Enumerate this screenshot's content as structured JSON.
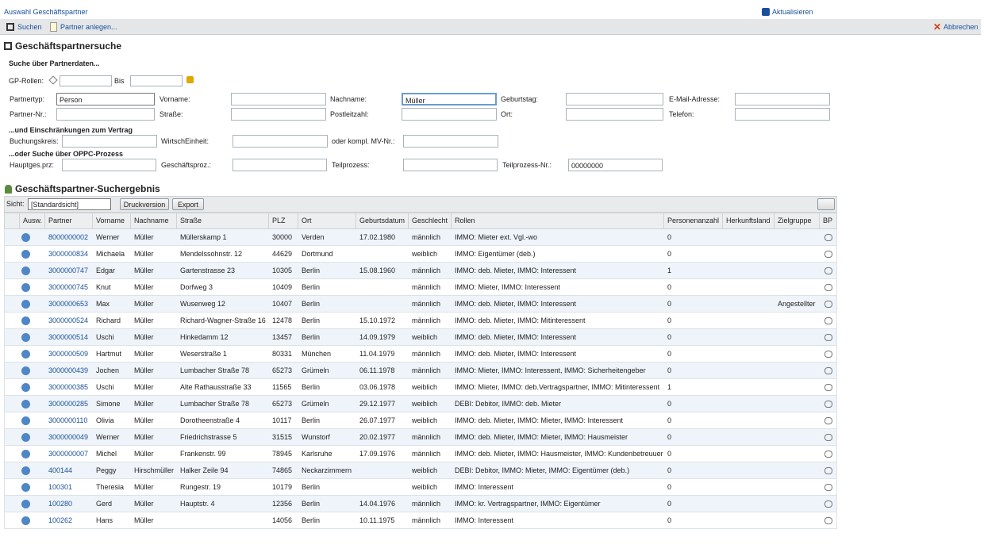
{
  "header": {
    "title": "Auswahl Geschäftspartner",
    "refresh": "Aktualisieren"
  },
  "toolbar": {
    "search": "Suchen",
    "create": "Partner anlegen...",
    "cancel": "Abbrechen"
  },
  "search": {
    "title": "Geschäftspartnersuche",
    "partner_section": "Suche über Partnerdaten...",
    "roles_label": "GP-Rollen:",
    "roles_to": "Bis",
    "fields": [
      [
        {
          "label": "Partnertyp:",
          "value": "Person"
        },
        {
          "label": "Vorname:"
        },
        {
          "label": "Nachname:",
          "value": "Müller"
        },
        {
          "label": "Geburtstag:"
        },
        {
          "label": "E-Mail-Adresse:"
        }
      ],
      [
        {
          "label": "Partner-Nr.:"
        },
        {
          "label": "Straße:"
        },
        {
          "label": "Postleitzahl:"
        },
        {
          "label": "Ort:"
        },
        {
          "label": "Telefon:"
        }
      ]
    ],
    "contract_section": "...und Einschränkungen zum Vertrag",
    "contract_fields": [
      {
        "label": "Buchungskreis:"
      },
      {
        "label": "WirtschEinheit:"
      },
      {
        "label": "oder kompl. MV-Nr.:"
      }
    ],
    "process_section": "...oder Suche über OPPC-Prozess",
    "process_fields": [
      {
        "label": "Hauptges.prz:"
      },
      {
        "label": "Geschäftsproz.:"
      },
      {
        "label": "Teilprozess:"
      },
      {
        "label": "Teilprozess-Nr.:",
        "value": "00000000"
      }
    ]
  },
  "results": {
    "title": "Geschäftspartner-Suchergebnis",
    "view_label": "Sicht:",
    "view": "[Standardsicht]",
    "print": "Druckversion",
    "export": "Export",
    "columns": [
      "Ausw.",
      "Partner",
      "Vorname",
      "Nachname",
      "Straße",
      "PLZ",
      "Ort",
      "Geburtsdatum",
      "Geschlecht",
      "Rollen",
      "Personenanzahl",
      "Herkunftsland",
      "Zielgruppe",
      "BP"
    ],
    "rows": [
      [
        "8000000002",
        "Werner",
        "Müller",
        "Müllerskamp 1",
        "30000",
        "Verden",
        "17.02.1980",
        "männlich",
        "IMMO: Mieter ext. Vgl.-wo",
        0,
        null,
        null
      ],
      [
        "3000000834",
        "Michaela",
        "Müller",
        "Mendelssohnstr. 12",
        "44629",
        "Dortmund",
        null,
        "weiblich",
        "IMMO: Eigentümer (deb.)",
        0,
        null,
        null
      ],
      [
        "3000000747",
        "Edgar",
        "Müller",
        "Gartenstrasse 23",
        "10305",
        "Berlin",
        "15.08.1960",
        "männlich",
        "IMMO: deb. Mieter, IMMO: Interessent",
        1,
        null,
        null
      ],
      [
        "3000000745",
        "Knut",
        "Müller",
        "Dorfweg 3",
        "10409",
        "Berlin",
        null,
        "männlich",
        "IMMO: Mieter, IMMO: Interessent",
        0,
        null,
        null
      ],
      [
        "3000000653",
        "Max",
        "Müller",
        "Wusenweg 12",
        "10407",
        "Berlin",
        null,
        "männlich",
        "IMMO: deb. Mieter, IMMO: Interessent",
        0,
        null,
        "Angestellter"
      ],
      [
        "3000000524",
        "Richard",
        "Müller",
        "Richard-Wagner-Straße 16",
        "12478",
        "Berlin",
        "15.10.1972",
        "männlich",
        "IMMO: deb. Mieter, IMMO: Mitinteressent",
        0,
        null,
        null
      ],
      [
        "3000000514",
        "Uschi",
        "Müller",
        "Hinkedamm 12",
        "13457",
        "Berlin",
        "14.09.1979",
        "weiblich",
        "IMMO: deb. Mieter, IMMO: Interessent",
        0,
        null,
        null
      ],
      [
        "3000000509",
        "Hartmut",
        "Müller",
        "Weserstraße 1",
        "80331",
        "München",
        "11.04.1979",
        "männlich",
        "IMMO: deb. Mieter, IMMO: Interessent",
        0,
        null,
        null
      ],
      [
        "3000000439",
        "Jochen",
        "Müller",
        "Lumbacher Straße 78",
        "65273",
        "Grümeln",
        "06.11.1978",
        "männlich",
        "IMMO: Mieter, IMMO: Interessent, IMMO: Sicherheitengeber",
        0,
        null,
        null
      ],
      [
        "3000000385",
        "Uschi",
        "Müller",
        "Alte Rathausstraße 33",
        "11565",
        "Berlin",
        "03.06.1978",
        "weiblich",
        "IMMO: Mieter, IMMO: deb.Vertragspartner, IMMO: Mitinteressent",
        1,
        null,
        null
      ],
      [
        "3000000285",
        "Simone",
        "Müller",
        "Lumbacher Straße 78",
        "65273",
        "Grümeln",
        "29.12.1977",
        "weiblich",
        "DEBI: Debitor, IMMO: deb. Mieter",
        0,
        null,
        null
      ],
      [
        "3000000110",
        "Olivia",
        "Müller",
        "Dorotheenstraße 4",
        "10117",
        "Berlin",
        "26.07.1977",
        "weiblich",
        "IMMO: deb. Mieter, IMMO: Mieter, IMMO: Interessent",
        0,
        null,
        null
      ],
      [
        "3000000049",
        "Werner",
        "Müller",
        "Friedrichstrasse 5",
        "31515",
        "Wunstorf",
        "20.02.1977",
        "männlich",
        "IMMO: deb. Mieter, IMMO: Mieter, IMMO: Hausmeister",
        0,
        null,
        null
      ],
      [
        "3000000007",
        "Michel",
        "Müller",
        "Frankenstr. 99",
        "78945",
        "Karlsruhe",
        "17.09.1976",
        "männlich",
        "IMMO: deb. Mieter, IMMO: Hausmeister, IMMO: Kundenbetreuuer",
        0,
        null,
        null
      ],
      [
        "400144",
        "Peggy",
        "Hirschmüller",
        "Halker Zeile 94",
        "74865",
        "Neckarzimmern",
        null,
        "weiblich",
        "DEBI: Debitor, IMMO: Mieter, IMMO: Eigentümer (deb.)",
        0,
        null,
        null
      ],
      [
        "100301",
        "Theresia",
        "Müller",
        "Rungestr. 19",
        "10179",
        "Berlin",
        null,
        "weiblich",
        "IMMO: Interessent",
        0,
        null,
        null
      ],
      [
        "100280",
        "Gerd",
        "Müller",
        "Hauptstr. 4",
        "12356",
        "Berlin",
        "14.04.1976",
        "männlich",
        "IMMO: kr. Vertragspartner, IMMO: Eigentümer",
        0,
        null,
        null
      ],
      [
        "100262",
        "Hans",
        "Müller",
        null,
        "14056",
        "Berlin",
        "10.11.1975",
        "männlich",
        "IMMO: Interessent",
        0,
        null,
        null
      ]
    ]
  }
}
